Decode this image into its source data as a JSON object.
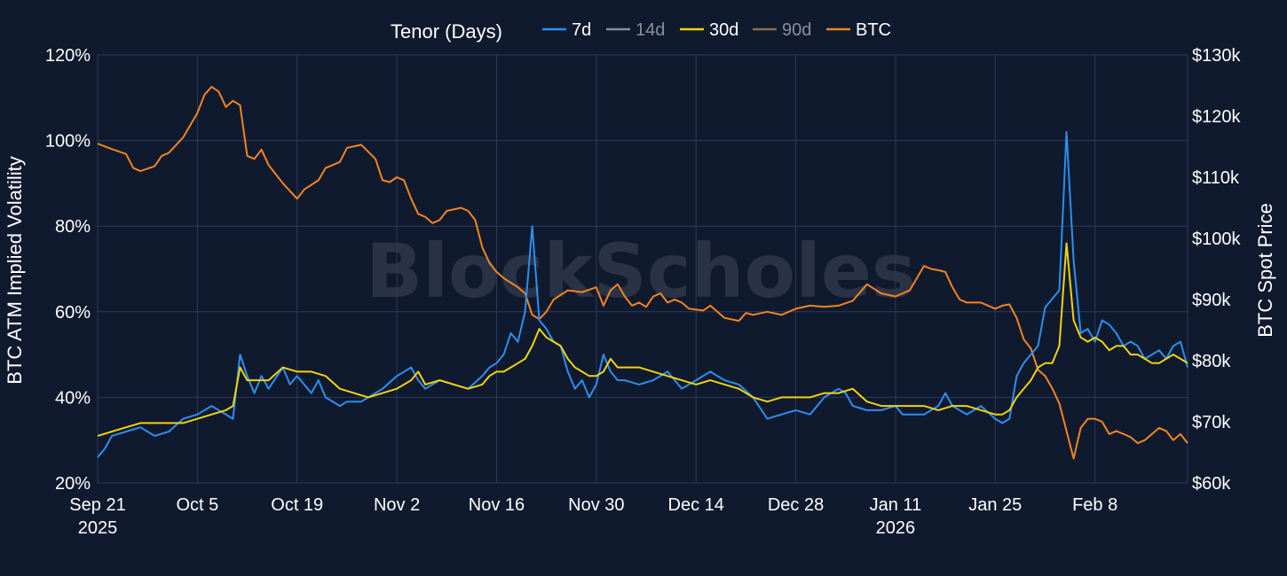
{
  "chart_data": {
    "type": "line",
    "watermark": "BlockScholes",
    "legend": {
      "title": "Tenor (Days)",
      "entries": [
        {
          "name": "7d",
          "color": "#2b8ff0",
          "active": true
        },
        {
          "name": "14d",
          "color": "#8a8f99",
          "active": false
        },
        {
          "name": "30d",
          "color": "#f2d20d",
          "active": true
        },
        {
          "name": "90d",
          "color": "#8a6f55",
          "active": false
        },
        {
          "name": "BTC",
          "color": "#f28422",
          "active": true
        }
      ]
    },
    "y_left": {
      "label": "BTC ATM Implied Volatility",
      "range": [
        20,
        120
      ],
      "ticks": [
        20,
        40,
        60,
        80,
        100,
        120
      ],
      "tick_labels": [
        "20%",
        "40%",
        "60%",
        "80%",
        "100%",
        "120%"
      ]
    },
    "y_right": {
      "label": "BTC Spot Price",
      "range": [
        60,
        130
      ],
      "ticks": [
        60,
        70,
        80,
        90,
        100,
        110,
        120,
        130
      ],
      "tick_labels": [
        "$60k",
        "$70k",
        "$80k",
        "$90k",
        "$100k",
        "$110k",
        "$120k",
        "$130k"
      ]
    },
    "x_axis": {
      "range_days": [
        0,
        153
      ],
      "ticks": [
        0,
        14,
        28,
        42,
        56,
        70,
        84,
        98,
        112,
        126,
        140
      ],
      "tick_labels": [
        "Sep 21",
        "Oct 5",
        "Oct 19",
        "Nov 2",
        "Nov 16",
        "Nov 30",
        "Dec 14",
        "Dec 28",
        "Jan 11",
        "Jan 25",
        "Feb 8"
      ],
      "year_labels": [
        {
          "day": 0,
          "label": "2025"
        },
        {
          "day": 112,
          "label": "2026"
        }
      ]
    },
    "series": [
      {
        "name": "BTC",
        "axis": "right",
        "color": "#f28422",
        "x": [
          0,
          2,
          4,
          5,
          6,
          8,
          9,
          10,
          12,
          14,
          15,
          16,
          17,
          18,
          19,
          20,
          21,
          22,
          23,
          24,
          26,
          28,
          29,
          31,
          32,
          34,
          35,
          37,
          39,
          40,
          41,
          42,
          43,
          44,
          45,
          46,
          47,
          48,
          49,
          51,
          52,
          53,
          54,
          55,
          56,
          57,
          59,
          60,
          61,
          62,
          63,
          64,
          66,
          68,
          70,
          71,
          72,
          73,
          74,
          75,
          76,
          77,
          78,
          79,
          80,
          81,
          82,
          83,
          85,
          86,
          88,
          90,
          91,
          92,
          94,
          96,
          98,
          100,
          102,
          104,
          106,
          108,
          110,
          112,
          114,
          115,
          116,
          117,
          118,
          119,
          120,
          121,
          122,
          124,
          126,
          127,
          128,
          129,
          130,
          131,
          132,
          133,
          134,
          135,
          136,
          137,
          138,
          139,
          140,
          141,
          142,
          143,
          144,
          145,
          146,
          147,
          148,
          149,
          150,
          151,
          152,
          153
        ],
        "values": [
          115.5,
          114.6,
          113.8,
          111.5,
          111.0,
          111.8,
          113.5,
          114.0,
          116.5,
          120.5,
          123.5,
          124.8,
          124.0,
          121.5,
          122.5,
          121.8,
          113.5,
          113.0,
          114.5,
          112.0,
          109.0,
          106.5,
          108.0,
          109.5,
          111.5,
          112.5,
          114.8,
          115.3,
          113.0,
          109.5,
          109.2,
          110.0,
          109.5,
          106.5,
          104.0,
          103.5,
          102.5,
          103.0,
          104.5,
          105.0,
          104.5,
          103.0,
          98.5,
          96.0,
          94.5,
          93.5,
          92.0,
          91.0,
          87.5,
          86.8,
          88.0,
          90.0,
          91.5,
          91.2,
          92.0,
          89.0,
          91.5,
          92.5,
          90.5,
          89.0,
          89.5,
          88.8,
          90.5,
          91.0,
          89.5,
          90.0,
          89.5,
          88.5,
          88.2,
          89.0,
          87.0,
          86.5,
          87.8,
          87.5,
          88.0,
          87.5,
          88.5,
          89.0,
          88.8,
          89.0,
          89.8,
          92.5,
          91.0,
          90.5,
          91.5,
          93.5,
          95.5,
          95.0,
          94.8,
          94.5,
          92.0,
          90.0,
          89.5,
          89.5,
          88.5,
          89.0,
          89.2,
          87.0,
          83.5,
          82.0,
          78.5,
          77.5,
          75.5,
          73.0,
          68.5,
          64.0,
          69.0,
          70.5,
          70.5,
          70.0,
          68.0,
          68.5,
          68.0,
          67.5,
          66.5,
          67.0,
          68.0,
          69.0,
          68.5,
          67.0,
          68.0,
          66.5
        ]
      },
      {
        "name": "7d",
        "axis": "left",
        "color": "#2b8ff0",
        "x": [
          0,
          1,
          2,
          4,
          6,
          8,
          10,
          12,
          14,
          16,
          18,
          19,
          20,
          21,
          22,
          23,
          24,
          26,
          27,
          28,
          30,
          31,
          32,
          34,
          35,
          37,
          38,
          40,
          42,
          44,
          45,
          46,
          48,
          50,
          52,
          54,
          55,
          56,
          57,
          58,
          59,
          60,
          61,
          62,
          63,
          64,
          65,
          66,
          67,
          68,
          69,
          70,
          71,
          72,
          73,
          74,
          76,
          78,
          80,
          82,
          84,
          86,
          88,
          90,
          92,
          94,
          96,
          98,
          100,
          102,
          104,
          105,
          106,
          108,
          110,
          112,
          113,
          114,
          116,
          118,
          119,
          120,
          122,
          124,
          126,
          127,
          128,
          129,
          130,
          131,
          132,
          133,
          134,
          135,
          136,
          137,
          138,
          139,
          140,
          141,
          142,
          143,
          144,
          145,
          146,
          147,
          148,
          149,
          150,
          151,
          152,
          153
        ],
        "values": [
          26,
          28,
          31,
          32,
          33,
          31,
          32,
          35,
          36,
          38,
          36,
          35,
          50,
          45,
          41,
          45,
          42,
          47,
          43,
          45,
          41,
          44,
          40,
          38,
          39,
          39,
          40,
          42,
          45,
          47,
          44,
          42,
          44,
          43,
          42,
          45,
          47,
          48,
          50,
          55,
          53,
          60,
          80,
          58,
          56,
          53,
          52,
          46,
          42,
          44,
          40,
          43,
          50,
          46,
          44,
          44,
          43,
          44,
          46,
          42,
          44,
          46,
          44,
          43,
          40,
          35,
          36,
          37,
          36,
          40,
          42,
          41,
          38,
          37,
          37,
          38,
          36,
          36,
          36,
          38,
          41,
          38,
          36,
          38,
          35,
          34,
          35,
          45,
          48,
          50,
          52,
          61,
          63,
          65,
          102,
          72,
          55,
          56,
          53,
          58,
          57,
          55,
          52,
          53,
          52,
          49,
          50,
          51,
          49,
          52,
          53,
          47
        ]
      },
      {
        "name": "30d",
        "axis": "left",
        "color": "#f2d20d",
        "x": [
          0,
          2,
          4,
          6,
          8,
          10,
          12,
          14,
          16,
          18,
          19,
          20,
          21,
          22,
          24,
          26,
          28,
          30,
          32,
          34,
          36,
          38,
          40,
          42,
          44,
          45,
          46,
          48,
          50,
          52,
          54,
          55,
          56,
          57,
          58,
          59,
          60,
          61,
          62,
          63,
          64,
          65,
          66,
          67,
          68,
          69,
          70,
          71,
          72,
          73,
          74,
          76,
          78,
          80,
          82,
          84,
          86,
          88,
          90,
          92,
          94,
          96,
          98,
          100,
          102,
          104,
          106,
          108,
          110,
          112,
          114,
          116,
          118,
          120,
          122,
          124,
          126,
          127,
          128,
          129,
          130,
          131,
          132,
          133,
          134,
          135,
          136,
          137,
          138,
          139,
          140,
          141,
          142,
          143,
          144,
          145,
          146,
          147,
          148,
          149,
          150,
          151,
          152,
          153
        ],
        "values": [
          31,
          32,
          33,
          34,
          34,
          34,
          34,
          35,
          36,
          37,
          38,
          47,
          44,
          44,
          44,
          47,
          46,
          46,
          45,
          42,
          41,
          40,
          41,
          42,
          44,
          46,
          43,
          44,
          43,
          42,
          43,
          45,
          46,
          46,
          47,
          48,
          49,
          52,
          56,
          54,
          53,
          52,
          49,
          47,
          46,
          45,
          45,
          46,
          49,
          47,
          47,
          47,
          46,
          45,
          44,
          43,
          44,
          43,
          42,
          40,
          39,
          40,
          40,
          40,
          41,
          41,
          42,
          39,
          38,
          38,
          38,
          38,
          37,
          38,
          38,
          37,
          36,
          36,
          37,
          40,
          42,
          44,
          47,
          48,
          48,
          52,
          76,
          58,
          54,
          53,
          54,
          53,
          51,
          52,
          52,
          50,
          50,
          49,
          48,
          48,
          49,
          50,
          49,
          48
        ]
      }
    ]
  }
}
